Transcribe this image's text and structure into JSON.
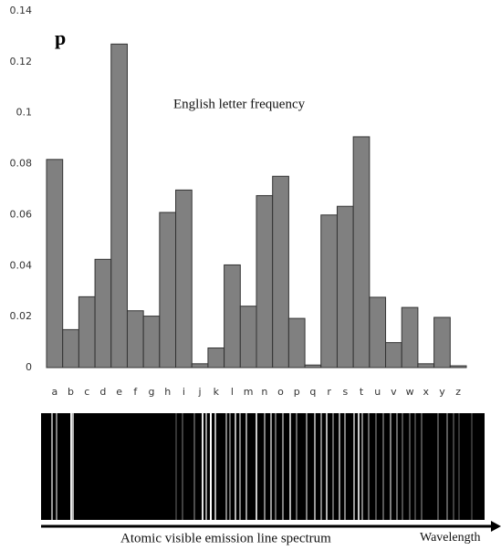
{
  "chart_data": {
    "type": "bar",
    "panel_label": "p",
    "title": "English letter frequency",
    "categories": [
      "a",
      "b",
      "c",
      "d",
      "e",
      "f",
      "g",
      "h",
      "i",
      "j",
      "k",
      "l",
      "m",
      "n",
      "o",
      "p",
      "q",
      "r",
      "s",
      "t",
      "u",
      "v",
      "w",
      "x",
      "y",
      "z"
    ],
    "values": [
      0.0817,
      0.0149,
      0.0278,
      0.0425,
      0.127,
      0.0223,
      0.0202,
      0.0609,
      0.0697,
      0.0015,
      0.0077,
      0.0403,
      0.0241,
      0.0675,
      0.0751,
      0.0193,
      0.001,
      0.0599,
      0.0633,
      0.0906,
      0.0276,
      0.0098,
      0.0236,
      0.0015,
      0.0197,
      0.0007
    ],
    "color": "#808080",
    "ylim": [
      0,
      0.14
    ],
    "yticks": [
      0,
      0.02,
      0.04,
      0.06,
      0.08,
      0.1,
      0.12,
      0.14
    ],
    "grid": false,
    "caption": "Atomic visible emission line spectrum",
    "arrow_label": "Wavelength"
  }
}
